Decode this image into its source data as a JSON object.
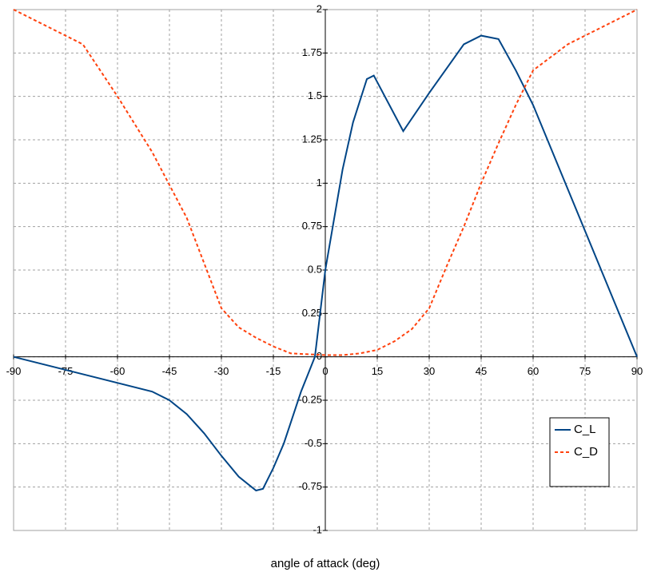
{
  "chart_data": {
    "type": "line",
    "x_label": "angle of attack (deg)",
    "xlim": [
      -90,
      90
    ],
    "xticks": [
      -90,
      -75,
      -60,
      -45,
      -30,
      -15,
      0,
      15,
      30,
      45,
      60,
      75,
      90
    ],
    "ylim": [
      -1,
      2
    ],
    "yticks": [
      -1,
      -0.75,
      -0.5,
      -0.25,
      0,
      0.25,
      0.5,
      0.75,
      1,
      1.25,
      1.5,
      1.75,
      2
    ],
    "grid": true,
    "legend": "right",
    "series": [
      {
        "name": "C_L",
        "color": "#004586",
        "dashed": false,
        "x": [
          -90,
          -50,
          -45,
          -40,
          -35,
          -30,
          -25,
          -20,
          -18,
          -15,
          -12,
          -10,
          -7,
          -3,
          0,
          5,
          8,
          12,
          14,
          22.5,
          30,
          40,
          45,
          50,
          55,
          60,
          90
        ],
        "values": [
          0,
          -0.2,
          -0.25,
          -0.33,
          -0.44,
          -0.57,
          -0.69,
          -0.77,
          -0.76,
          -0.64,
          -0.5,
          -0.38,
          -0.2,
          0,
          0.5,
          1.08,
          1.35,
          1.6,
          1.62,
          1.3,
          1.52,
          1.8,
          1.85,
          1.83,
          1.65,
          1.45,
          0
        ]
      },
      {
        "name": "C_D",
        "color": "#ff420e",
        "dashed": true,
        "x": [
          -90,
          -70,
          -60,
          -50,
          -40,
          -30,
          -25,
          -20,
          -15,
          -10,
          -5,
          0,
          5,
          10,
          15,
          20,
          25,
          30,
          35,
          40,
          45,
          50,
          55,
          60,
          70,
          90
        ],
        "values": [
          2,
          1.8,
          1.5,
          1.18,
          0.8,
          0.28,
          0.17,
          0.11,
          0.06,
          0.02,
          0.015,
          0.01,
          0.01,
          0.02,
          0.04,
          0.09,
          0.16,
          0.28,
          0.52,
          0.75,
          1.0,
          1.23,
          1.45,
          1.65,
          1.8,
          2
        ]
      }
    ]
  }
}
